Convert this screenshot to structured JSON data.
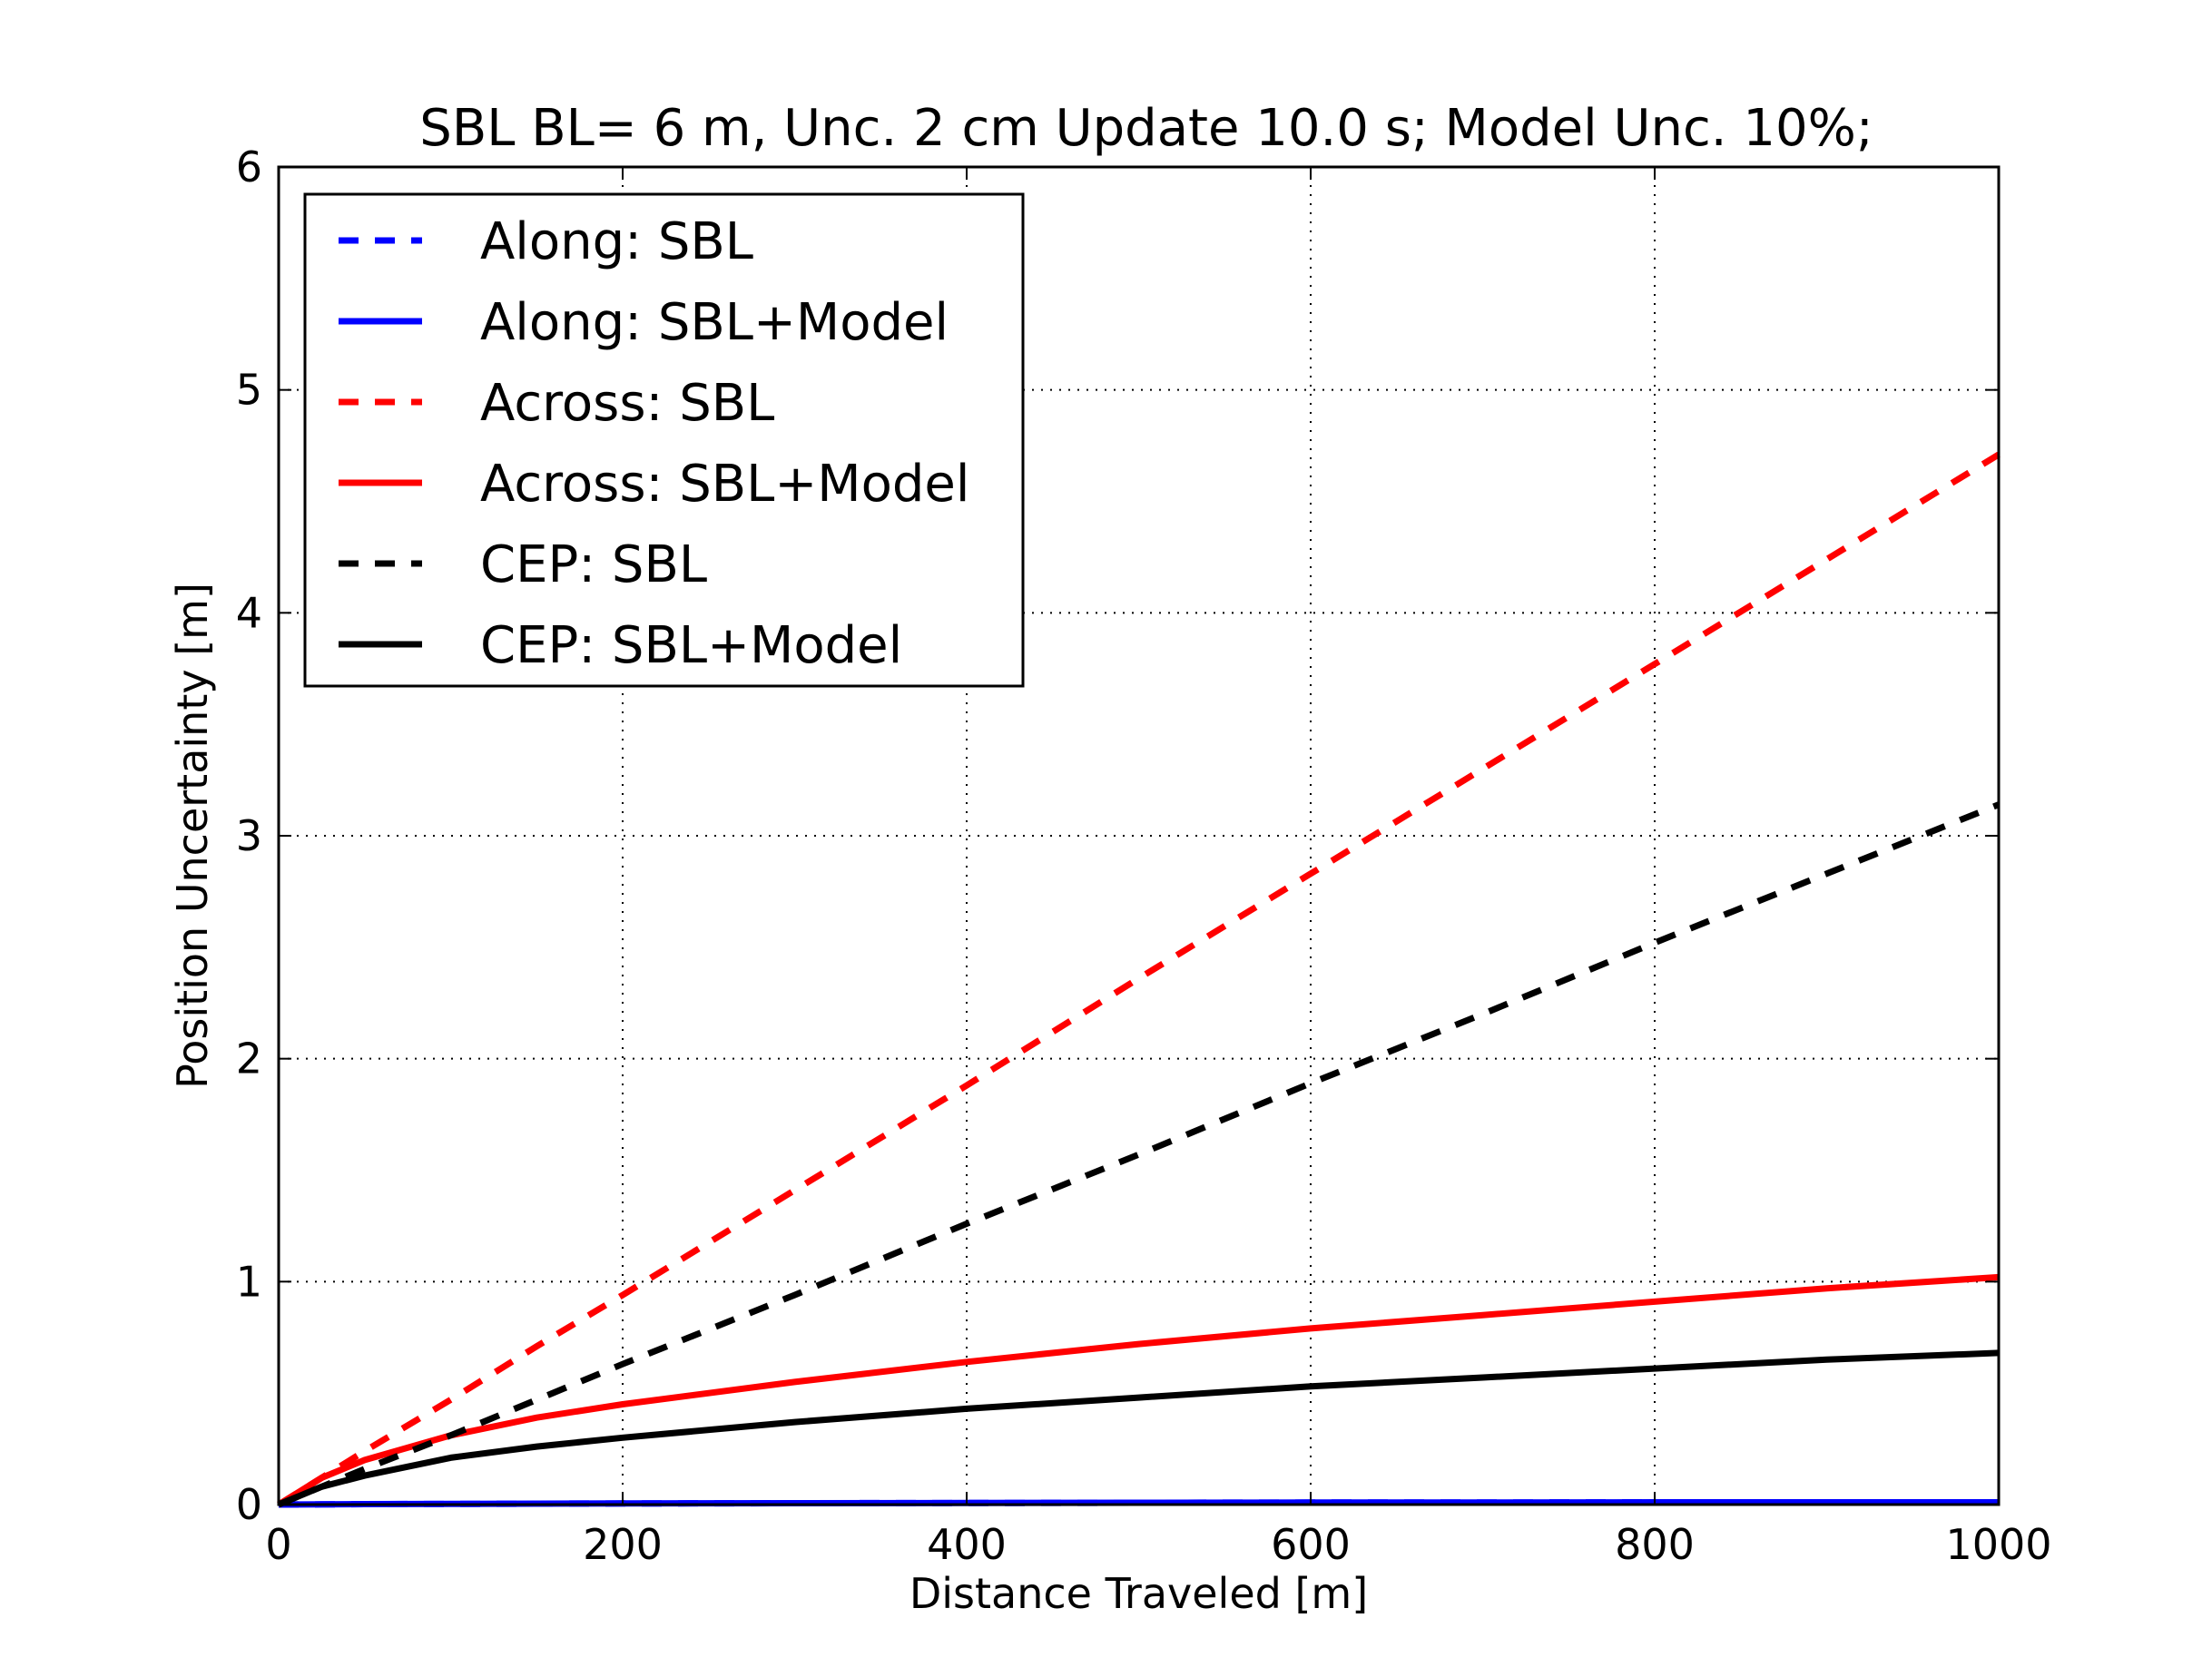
{
  "chart_data": {
    "type": "line",
    "title": "SBL BL= 6 m, Unc.  2 cm  Update 10.0 s; Model Unc. 10%;",
    "xlabel": "Distance Traveled [m]",
    "ylabel": "Position Uncertainty [m]",
    "xlim": [
      0,
      1000
    ],
    "ylim": [
      0,
      6
    ],
    "xticks": [
      0,
      200,
      400,
      600,
      800,
      1000
    ],
    "yticks": [
      0,
      1,
      2,
      3,
      4,
      5,
      6
    ],
    "xtick_labels": [
      "0",
      "200",
      "400",
      "600",
      "800",
      "1000"
    ],
    "ytick_labels": [
      "0",
      "1",
      "2",
      "3",
      "4",
      "5",
      "6"
    ],
    "grid": true,
    "legend_position": "top-left",
    "x": [
      0,
      25,
      50,
      100,
      150,
      200,
      300,
      400,
      500,
      600,
      700,
      800,
      900,
      1000
    ],
    "series": [
      {
        "name": "Along: SBL",
        "color": "#0000ff",
        "style": "dashed",
        "values": [
          0,
          0.001,
          0.002,
          0.003,
          0.004,
          0.005,
          0.006,
          0.007,
          0.008,
          0.009,
          0.009,
          0.01,
          0.01,
          0.01
        ]
      },
      {
        "name": "Along: SBL+Model",
        "color": "#0000ff",
        "style": "solid",
        "values": [
          0,
          0.001,
          0.002,
          0.003,
          0.004,
          0.005,
          0.006,
          0.007,
          0.008,
          0.009,
          0.009,
          0.01,
          0.01,
          0.01
        ]
      },
      {
        "name": "Across: SBL",
        "color": "#ff0000",
        "style": "dashed",
        "values": [
          0,
          0.12,
          0.24,
          0.47,
          0.71,
          0.94,
          1.41,
          1.88,
          2.36,
          2.83,
          3.3,
          3.77,
          4.24,
          4.71
        ]
      },
      {
        "name": "Across: SBL+Model",
        "color": "#ff0000",
        "style": "solid",
        "values": [
          0,
          0.12,
          0.2,
          0.31,
          0.39,
          0.45,
          0.55,
          0.64,
          0.72,
          0.79,
          0.85,
          0.91,
          0.97,
          1.02
        ]
      },
      {
        "name": "CEP: SBL",
        "color": "#000000",
        "style": "dashed",
        "values": [
          0,
          0.08,
          0.16,
          0.31,
          0.47,
          0.63,
          0.94,
          1.26,
          1.57,
          1.89,
          2.2,
          2.52,
          2.83,
          3.14
        ]
      },
      {
        "name": "CEP: SBL+Model",
        "color": "#000000",
        "style": "solid",
        "values": [
          0,
          0.08,
          0.13,
          0.21,
          0.26,
          0.3,
          0.37,
          0.43,
          0.48,
          0.53,
          0.57,
          0.61,
          0.65,
          0.68
        ]
      }
    ]
  }
}
